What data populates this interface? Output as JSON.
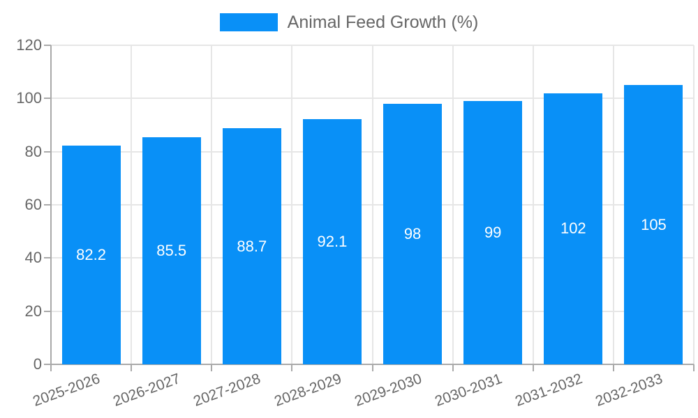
{
  "legend": {
    "swatch_icon": "series-color-swatch"
  },
  "chart_data": {
    "type": "bar",
    "series_name": "Animal Feed Growth (%)",
    "categories": [
      "2025-2026",
      "2026-2027",
      "2027-2028",
      "2028-2029",
      "2029-2030",
      "2030-2031",
      "2031-2032",
      "2032-2033"
    ],
    "values": [
      82.2,
      85.5,
      88.7,
      92.1,
      98,
      99,
      102,
      105
    ],
    "value_labels": [
      "82.2",
      "85.5",
      "88.7",
      "92.1",
      "98",
      "99",
      "102",
      "105"
    ],
    "title": "",
    "xlabel": "",
    "ylabel": "",
    "ylim": [
      0,
      120
    ],
    "yticks": [
      0,
      20,
      40,
      60,
      80,
      100,
      120
    ],
    "grid": true,
    "legend_position": "top-center",
    "x_label_rotation_deg": -20,
    "colors": {
      "bar": "#0990f7",
      "value_label": "#ffffff",
      "gridline": "#e6e6e6",
      "axis": "#a9a9a9",
      "tick_label": "#666666",
      "legend_text": "#666666",
      "background": "#ffffff"
    }
  }
}
